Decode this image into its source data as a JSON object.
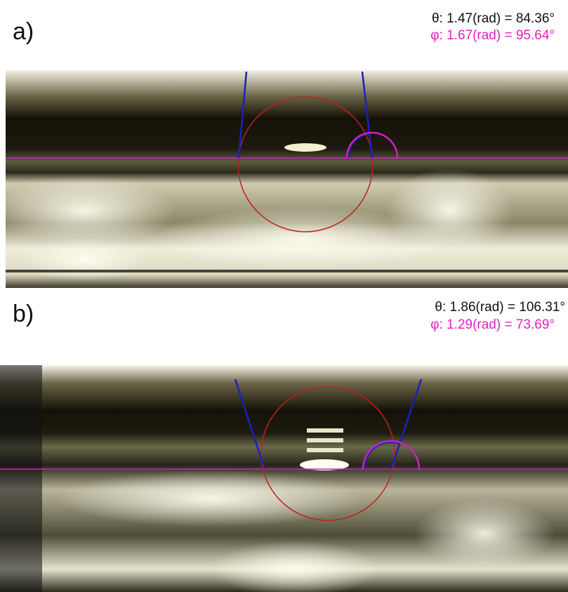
{
  "panels": [
    {
      "label": "a)",
      "theta": "θ: 1.47(rad) = 84.36°",
      "phi": "φ: 1.67(rad) = 95.64°"
    },
    {
      "label": "b)",
      "theta": "θ: 1.86(rad) = 106.31°",
      "phi": "φ: 1.29(rad) = 73.69°"
    }
  ]
}
